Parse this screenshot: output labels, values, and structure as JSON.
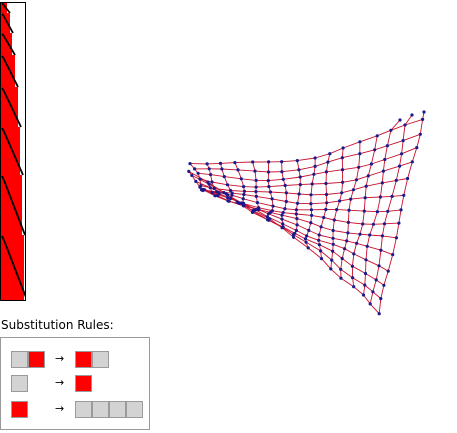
{
  "rules_panel": {
    "heading": "Substitution Rules:",
    "arrow_glyph": "→",
    "colors": {
      "gray": "#d3d3d3",
      "red": "#ff0000",
      "border": "#9a9a9a"
    },
    "rules": [
      {
        "lhs": [
          "gray",
          "red"
        ],
        "rhs": [
          "red",
          "gray"
        ]
      },
      {
        "lhs": [
          "gray"
        ],
        "rhs": [
          "red"
        ]
      },
      {
        "lhs": [
          "red"
        ],
        "rhs": [
          "gray",
          "gray",
          "gray",
          "gray"
        ]
      }
    ]
  },
  "network": {
    "edge_color": "#c8102e",
    "node_color": "#1a1a8c"
  },
  "evolution": {
    "fill_color": "#ff0000",
    "line_color": "#000000",
    "background": "#ffffff"
  }
}
